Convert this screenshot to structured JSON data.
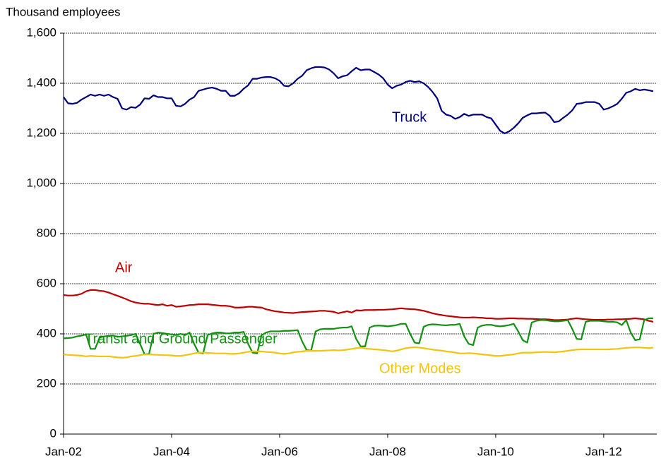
{
  "chart_data": {
    "type": "line",
    "y_axis_label": "Thousand employees",
    "categories": [
      "Jan-02",
      null,
      null,
      null,
      null,
      null,
      null,
      null,
      null,
      null,
      null,
      null,
      null,
      null,
      null,
      null,
      null,
      null,
      null,
      null,
      null,
      null,
      null,
      null,
      "Jan-04",
      null,
      null,
      null,
      null,
      null,
      null,
      null,
      null,
      null,
      null,
      null,
      null,
      null,
      null,
      null,
      null,
      null,
      null,
      null,
      null,
      null,
      null,
      null,
      "Jan-06",
      null,
      null,
      null,
      null,
      null,
      null,
      null,
      null,
      null,
      null,
      null,
      null,
      null,
      null,
      null,
      null,
      null,
      null,
      null,
      null,
      null,
      null,
      null,
      "Jan-08",
      null,
      null,
      null,
      null,
      null,
      null,
      null,
      null,
      null,
      null,
      null,
      null,
      null,
      null,
      null,
      null,
      null,
      null,
      null,
      null,
      null,
      null,
      null,
      "Jan-10",
      null,
      null,
      null,
      null,
      null,
      null,
      null,
      null,
      null,
      null,
      null,
      null,
      null,
      null,
      null,
      null,
      null,
      null,
      null,
      null,
      null,
      null,
      null,
      "Jan-12",
      null,
      null,
      null,
      null,
      null,
      null,
      null,
      null,
      null,
      null,
      null
    ],
    "ylim": [
      0,
      1600
    ],
    "yticks": [
      0,
      200,
      400,
      600,
      800,
      {
        "value": 1000,
        "label": "1,000"
      },
      {
        "value": 1200,
        "label": "1,200"
      },
      {
        "value": 1400,
        "label": "1,400"
      },
      {
        "value": 1600,
        "label": "1,600"
      }
    ],
    "grid": true,
    "series": [
      {
        "name": "Truck",
        "color": "#000080",
        "values": [
          1345,
          1320,
          1318,
          1322,
          1335,
          1345,
          1355,
          1350,
          1355,
          1350,
          1355,
          1345,
          1338,
          1300,
          1295,
          1305,
          1302,
          1315,
          1340,
          1338,
          1352,
          1345,
          1345,
          1340,
          1340,
          1310,
          1308,
          1318,
          1335,
          1345,
          1370,
          1375,
          1380,
          1383,
          1378,
          1370,
          1370,
          1350,
          1350,
          1360,
          1378,
          1392,
          1418,
          1418,
          1423,
          1425,
          1425,
          1420,
          1410,
          1390,
          1388,
          1400,
          1418,
          1430,
          1452,
          1460,
          1465,
          1465,
          1463,
          1455,
          1440,
          1420,
          1428,
          1432,
          1448,
          1462,
          1452,
          1455,
          1455,
          1445,
          1435,
          1420,
          1395,
          1380,
          1390,
          1395,
          1405,
          1410,
          1405,
          1408,
          1400,
          1385,
          1365,
          1340,
          1290,
          1275,
          1270,
          1258,
          1265,
          1278,
          1270,
          1275,
          1275,
          1275,
          1265,
          1260,
          1235,
          1210,
          1200,
          1208,
          1222,
          1240,
          1262,
          1272,
          1280,
          1280,
          1282,
          1283,
          1270,
          1245,
          1248,
          1262,
          1275,
          1292,
          1318,
          1320,
          1325,
          1325,
          1325,
          1318,
          1295,
          1300,
          1308,
          1318,
          1338,
          1362,
          1368,
          1378,
          1372,
          1375,
          1372,
          1368
        ]
      },
      {
        "name": "Air",
        "color": "#c00000",
        "values": [
          555,
          553,
          553,
          555,
          560,
          570,
          575,
          575,
          572,
          570,
          565,
          558,
          552,
          545,
          538,
          530,
          525,
          522,
          520,
          520,
          517,
          515,
          518,
          512,
          515,
          508,
          510,
          512,
          515,
          516,
          518,
          518,
          518,
          516,
          514,
          512,
          512,
          510,
          505,
          505,
          506,
          508,
          508,
          506,
          505,
          498,
          494,
          490,
          488,
          485,
          484,
          483,
          485,
          487,
          488,
          489,
          490,
          492,
          492,
          490,
          488,
          482,
          486,
          490,
          485,
          494,
          493,
          495,
          495,
          495,
          496,
          496,
          497,
          498,
          500,
          502,
          500,
          499,
          498,
          495,
          492,
          487,
          482,
          478,
          475,
          472,
          470,
          468,
          466,
          465,
          465,
          466,
          465,
          464,
          462,
          462,
          460,
          460,
          461,
          462,
          462,
          461,
          461,
          460,
          460,
          459,
          458,
          458,
          457,
          455,
          455,
          456,
          457,
          460,
          462,
          460,
          458,
          457,
          456,
          456,
          456,
          457,
          457,
          458,
          458,
          459,
          460,
          462,
          460,
          458,
          452,
          448
        ]
      },
      {
        "name": "Transit and Ground Passenger",
        "color": "#119311",
        "values": [
          382,
          383,
          385,
          390,
          393,
          398,
          340,
          340,
          385,
          390,
          392,
          393,
          388,
          390,
          392,
          395,
          400,
          360,
          318,
          320,
          400,
          405,
          403,
          400,
          398,
          395,
          400,
          395,
          405,
          360,
          325,
          322,
          395,
          402,
          405,
          405,
          402,
          402,
          405,
          405,
          408,
          360,
          325,
          322,
          395,
          405,
          410,
          410,
          410,
          412,
          412,
          413,
          415,
          370,
          335,
          333,
          410,
          418,
          420,
          420,
          420,
          423,
          425,
          425,
          430,
          380,
          350,
          350,
          425,
          432,
          433,
          432,
          430,
          432,
          435,
          440,
          440,
          400,
          365,
          362,
          428,
          436,
          438,
          437,
          435,
          434,
          436,
          436,
          440,
          390,
          360,
          355,
          425,
          433,
          436,
          436,
          432,
          430,
          432,
          435,
          440,
          410,
          375,
          365,
          445,
          452,
          455,
          455,
          452,
          450,
          450,
          452,
          455,
          420,
          380,
          378,
          448,
          452,
          452,
          452,
          450,
          448,
          448,
          446,
          435,
          455,
          405,
          375,
          378,
          455,
          462,
          462
        ]
      },
      {
        "name": "Other Modes",
        "color": "#f2c40c",
        "values": [
          318,
          316,
          315,
          314,
          313,
          310,
          312,
          311,
          310,
          310,
          310,
          308,
          306,
          305,
          306,
          310,
          312,
          315,
          318,
          318,
          317,
          316,
          315,
          315,
          314,
          312,
          312,
          315,
          318,
          322,
          325,
          325,
          324,
          323,
          322,
          322,
          322,
          320,
          320,
          322,
          325,
          328,
          330,
          330,
          330,
          328,
          327,
          325,
          322,
          320,
          322,
          326,
          328,
          330,
          332,
          332,
          332,
          332,
          333,
          334,
          335,
          334,
          335,
          337,
          340,
          343,
          345,
          342,
          340,
          338,
          337,
          335,
          333,
          330,
          333,
          338,
          343,
          345,
          347,
          345,
          343,
          340,
          337,
          335,
          333,
          330,
          328,
          325,
          322,
          322,
          323,
          322,
          320,
          318,
          316,
          314,
          312,
          312,
          314,
          316,
          318,
          322,
          325,
          325,
          325,
          326,
          327,
          328,
          327,
          326,
          328,
          330,
          332,
          335,
          337,
          338,
          338,
          338,
          338,
          338,
          338,
          338,
          339,
          340,
          342,
          344,
          345,
          346,
          346,
          344,
          343,
          345
        ]
      }
    ]
  }
}
